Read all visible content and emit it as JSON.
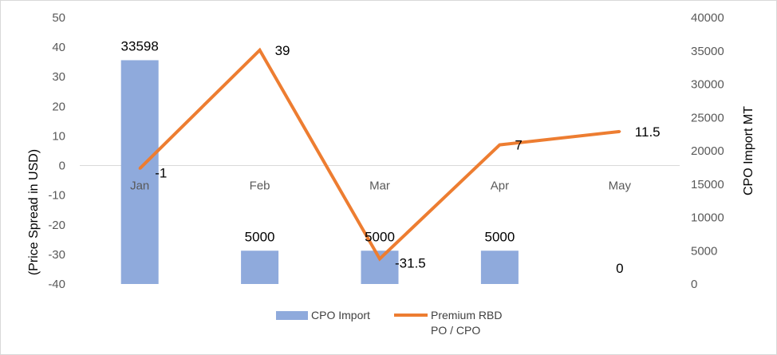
{
  "chart_data": {
    "type": "bar+line",
    "categories": [
      "Jan",
      "Feb",
      "Mar",
      "Apr",
      "May"
    ],
    "series": [
      {
        "name": "CPO Import",
        "type": "bar",
        "axis": "right",
        "values": [
          33598,
          5000,
          5000,
          5000,
          0
        ],
        "labels": [
          "33598",
          "5000",
          "5000",
          "5000",
          "0"
        ],
        "color": "#8faadc"
      },
      {
        "name": "Premium RBD PO / CPO",
        "type": "line",
        "axis": "left",
        "values": [
          -1,
          39,
          -31.5,
          7,
          11.5
        ],
        "labels": [
          "-1",
          "39",
          "-31.5",
          "7",
          "11.5"
        ],
        "color": "#ed7d31"
      }
    ],
    "left_axis": {
      "title": "(Price Spread in USD)",
      "min": -40,
      "max": 50,
      "step": 10
    },
    "right_axis": {
      "title": "CPO Import MT",
      "min": 0,
      "max": 40000,
      "step": 5000
    },
    "legend": {
      "position": "bottom",
      "items": [
        {
          "label": "CPO Import",
          "line2": ""
        },
        {
          "label": "Premium RBD",
          "line2": "PO / CPO"
        }
      ]
    },
    "grid": false
  }
}
